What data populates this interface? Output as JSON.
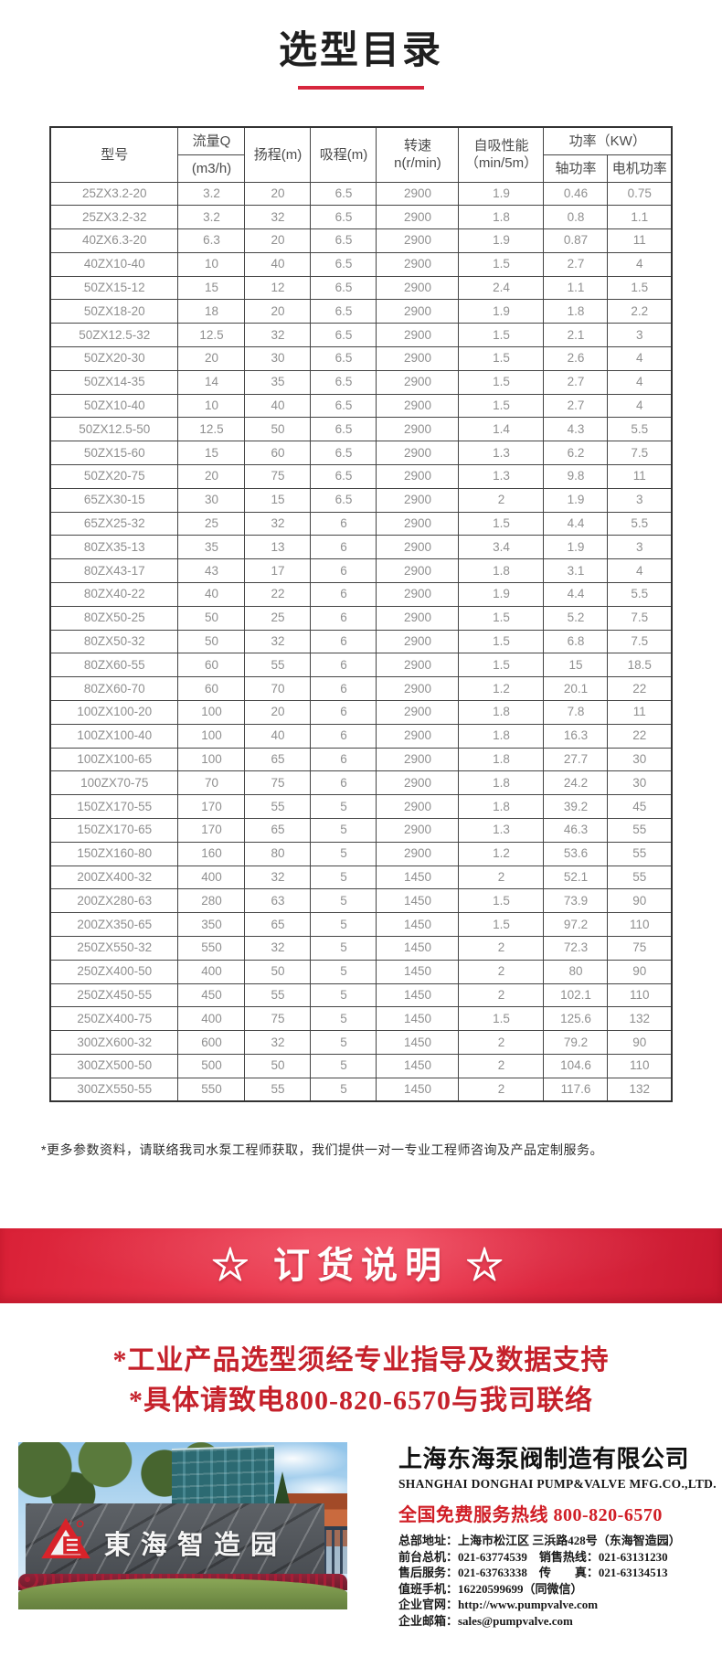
{
  "page": {
    "title": "选型目录",
    "note": "*更多参数资料，请联络我司水泵工程师获取，我们提供一对一专业工程师咨询及产品定制服务。"
  },
  "colors": {
    "accent_red": "#d7263d",
    "banner_red_dark": "#c8182f",
    "banner_red_light": "#ef4156",
    "slogan_red": "#c5212b",
    "hotline_red": "#d01e26",
    "table_border": "#454545",
    "table_text_gray": "#8f8f8f"
  },
  "table": {
    "headers": {
      "model": "型号",
      "flow_line1": "流量Q",
      "flow_line2": "(m3/h)",
      "head": "扬程(m)",
      "suction": "吸程(m)",
      "speed": "转速\nn(r/min)",
      "self_priming": "自吸性能\n（min/5m）",
      "power_group": "功率（KW）",
      "shaft_power": "轴功率",
      "motor_power": "电机功率"
    },
    "rows": [
      [
        "25ZX3.2-20",
        "3.2",
        "20",
        "6.5",
        "2900",
        "1.9",
        "0.46",
        "0.75"
      ],
      [
        "25ZX3.2-32",
        "3.2",
        "32",
        "6.5",
        "2900",
        "1.8",
        "0.8",
        "1.1"
      ],
      [
        "40ZX6.3-20",
        "6.3",
        "20",
        "6.5",
        "2900",
        "1.9",
        "0.87",
        "11"
      ],
      [
        "40ZX10-40",
        "10",
        "40",
        "6.5",
        "2900",
        "1.5",
        "2.7",
        "4"
      ],
      [
        "50ZX15-12",
        "15",
        "12",
        "6.5",
        "2900",
        "2.4",
        "1.1",
        "1.5"
      ],
      [
        "50ZX18-20",
        "18",
        "20",
        "6.5",
        "2900",
        "1.9",
        "1.8",
        "2.2"
      ],
      [
        "50ZX12.5-32",
        "12.5",
        "32",
        "6.5",
        "2900",
        "1.5",
        "2.1",
        "3"
      ],
      [
        "50ZX20-30",
        "20",
        "30",
        "6.5",
        "2900",
        "1.5",
        "2.6",
        "4"
      ],
      [
        "50ZX14-35",
        "14",
        "35",
        "6.5",
        "2900",
        "1.5",
        "2.7",
        "4"
      ],
      [
        "50ZX10-40",
        "10",
        "40",
        "6.5",
        "2900",
        "1.5",
        "2.7",
        "4"
      ],
      [
        "50ZX12.5-50",
        "12.5",
        "50",
        "6.5",
        "2900",
        "1.4",
        "4.3",
        "5.5"
      ],
      [
        "50ZX15-60",
        "15",
        "60",
        "6.5",
        "2900",
        "1.3",
        "6.2",
        "7.5"
      ],
      [
        "50ZX20-75",
        "20",
        "75",
        "6.5",
        "2900",
        "1.3",
        "9.8",
        "11"
      ],
      [
        "65ZX30-15",
        "30",
        "15",
        "6.5",
        "2900",
        "2",
        "1.9",
        "3"
      ],
      [
        "65ZX25-32",
        "25",
        "32",
        "6",
        "2900",
        "1.5",
        "4.4",
        "5.5"
      ],
      [
        "80ZX35-13",
        "35",
        "13",
        "6",
        "2900",
        "3.4",
        "1.9",
        "3"
      ],
      [
        "80ZX43-17",
        "43",
        "17",
        "6",
        "2900",
        "1.8",
        "3.1",
        "4"
      ],
      [
        "80ZX40-22",
        "40",
        "22",
        "6",
        "2900",
        "1.9",
        "4.4",
        "5.5"
      ],
      [
        "80ZX50-25",
        "50",
        "25",
        "6",
        "2900",
        "1.5",
        "5.2",
        "7.5"
      ],
      [
        "80ZX50-32",
        "50",
        "32",
        "6",
        "2900",
        "1.5",
        "6.8",
        "7.5"
      ],
      [
        "80ZX60-55",
        "60",
        "55",
        "6",
        "2900",
        "1.5",
        "15",
        "18.5"
      ],
      [
        "80ZX60-70",
        "60",
        "70",
        "6",
        "2900",
        "1.2",
        "20.1",
        "22"
      ],
      [
        "100ZX100-20",
        "100",
        "20",
        "6",
        "2900",
        "1.8",
        "7.8",
        "11"
      ],
      [
        "100ZX100-40",
        "100",
        "40",
        "6",
        "2900",
        "1.8",
        "16.3",
        "22"
      ],
      [
        "100ZX100-65",
        "100",
        "65",
        "6",
        "2900",
        "1.8",
        "27.7",
        "30"
      ],
      [
        "100ZX70-75",
        "70",
        "75",
        "6",
        "2900",
        "1.8",
        "24.2",
        "30"
      ],
      [
        "150ZX170-55",
        "170",
        "55",
        "5",
        "2900",
        "1.8",
        "39.2",
        "45"
      ],
      [
        "150ZX170-65",
        "170",
        "65",
        "5",
        "2900",
        "1.3",
        "46.3",
        "55"
      ],
      [
        "150ZX160-80",
        "160",
        "80",
        "5",
        "2900",
        "1.2",
        "53.6",
        "55"
      ],
      [
        "200ZX400-32",
        "400",
        "32",
        "5",
        "1450",
        "2",
        "52.1",
        "55"
      ],
      [
        "200ZX280-63",
        "280",
        "63",
        "5",
        "1450",
        "1.5",
        "73.9",
        "90"
      ],
      [
        "200ZX350-65",
        "350",
        "65",
        "5",
        "1450",
        "1.5",
        "97.2",
        "110"
      ],
      [
        "250ZX550-32",
        "550",
        "32",
        "5",
        "1450",
        "2",
        "72.3",
        "75"
      ],
      [
        "250ZX400-50",
        "400",
        "50",
        "5",
        "1450",
        "2",
        "80",
        "90"
      ],
      [
        "250ZX450-55",
        "450",
        "55",
        "5",
        "1450",
        "2",
        "102.1",
        "110"
      ],
      [
        "250ZX400-75",
        "400",
        "75",
        "5",
        "1450",
        "1.5",
        "125.6",
        "132"
      ],
      [
        "300ZX600-32",
        "600",
        "32",
        "5",
        "1450",
        "2",
        "79.2",
        "90"
      ],
      [
        "300ZX500-50",
        "500",
        "50",
        "5",
        "1450",
        "2",
        "104.6",
        "110"
      ],
      [
        "300ZX550-55",
        "550",
        "55",
        "5",
        "1450",
        "2",
        "117.6",
        "132"
      ]
    ]
  },
  "banner": {
    "label": "☆ 订货说明 ☆"
  },
  "slogans": {
    "line1": "*工业产品选型须经专业指导及数据支持",
    "line2": "*具体请致电800-820-6570与我司联络"
  },
  "footer": {
    "photo_sign": "東海智造园",
    "company_cn": "上海东海泵阀制造有限公司",
    "company_en": "SHANGHAI DONGHAI PUMP&VALVE MFG.CO.,LTD.",
    "hotline": "全国免费服务热线  800-820-6570",
    "details": [
      "总部地址：上海市松江区 三浜路428号（东海智造园）",
      "前台总机：021-63774539　销售热线：021-63131230",
      "售后服务：021-63763338　传　　真：021-63134513",
      "值班手机：16220599699（同微信）",
      "企业官网：http://www.pumpvalve.com",
      "企业邮箱：sales@pumpvalve.com"
    ]
  }
}
